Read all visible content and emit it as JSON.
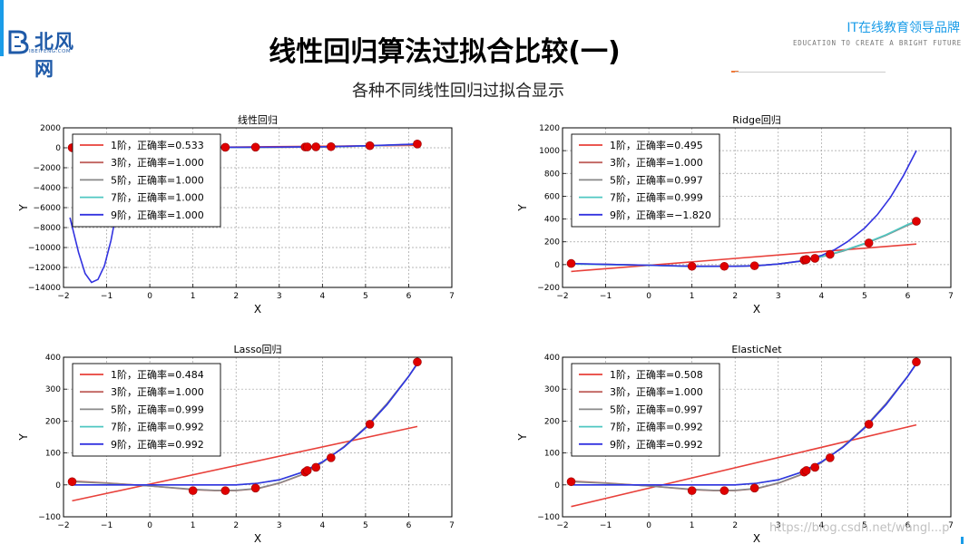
{
  "header": {
    "logo_text": "北风网",
    "logo_url": "IBEIFENG.COM",
    "slogan": "IT在线教育领导品牌",
    "sub_slogan": "EDUCATION TO CREATE A BRIGHT FUTURE"
  },
  "page": {
    "title": "线性回归算法过拟合比较(一)",
    "subtitle": "各种不同线性回归过拟合显示"
  },
  "watermark": "https://blog.csdn.net/wangl...p",
  "colors": {
    "deg1": "#e8403a",
    "deg3": "#c0615d",
    "deg5": "#888888",
    "deg7": "#4fc7c2",
    "deg9": "#3333e0",
    "points": "#e00000",
    "grid": "#a0a0a0",
    "accent": "#1a9ce8"
  },
  "chart_data": [
    {
      "type": "line",
      "title": "线性回归",
      "xlabel": "X",
      "ylabel": "Y",
      "xlim": [
        -2,
        7
      ],
      "ylim": [
        -14000,
        2000
      ],
      "xticks": [
        "−2",
        "−1",
        "0",
        "1",
        "2",
        "3",
        "4",
        "5",
        "6",
        "7"
      ],
      "yticks": [
        "−14000",
        "−12000",
        "−10000",
        "−8000",
        "−6000",
        "−4000",
        "−2000",
        "0",
        "2000"
      ],
      "grid": true,
      "legend_position": "top-left",
      "legend": [
        "1阶，正确率=0.533",
        "3阶，正确率=1.000",
        "5阶，正确率=1.000",
        "7阶，正确率=1.000",
        "9阶，正确率=1.000"
      ],
      "points": {
        "x": [
          -1.8,
          1.0,
          1.75,
          2.45,
          3.6,
          3.65,
          3.85,
          4.2,
          5.1,
          6.2
        ],
        "y": [
          8,
          40,
          50,
          60,
          80,
          85,
          95,
          110,
          210,
          380
        ]
      },
      "series": [
        {
          "key": "deg1",
          "x": [
            -1.8,
            6.2
          ],
          "y": [
            -60,
            250
          ]
        },
        {
          "key": "deg3",
          "x": [
            -1.8,
            -1,
            0,
            1,
            2,
            3,
            4,
            5,
            6,
            6.2
          ],
          "y": [
            -50,
            -30,
            -5,
            15,
            30,
            50,
            80,
            170,
            330,
            380
          ]
        },
        {
          "key": "deg5",
          "x": [
            -1.8,
            -1,
            0,
            1,
            2,
            3,
            4,
            5,
            6,
            6.2
          ],
          "y": [
            -40,
            -20,
            0,
            20,
            40,
            60,
            90,
            180,
            330,
            380
          ]
        },
        {
          "key": "deg7",
          "x": [
            -1.8,
            -1,
            0,
            1,
            2,
            3,
            4,
            5,
            6,
            6.2
          ],
          "y": [
            -40,
            -20,
            0,
            20,
            40,
            60,
            90,
            180,
            330,
            380
          ]
        },
        {
          "key": "deg9",
          "x": [
            -1.85,
            -1.65,
            -1.5,
            -1.35,
            -1.2,
            -1.05,
            -0.9,
            -0.7,
            -0.5,
            -0.45,
            0,
            1,
            2,
            3,
            4,
            5,
            6,
            6.2
          ],
          "y": [
            -7000,
            -10500,
            -12600,
            -13500,
            -13200,
            -11800,
            -9300,
            -4800,
            -1200,
            0,
            0,
            30,
            50,
            70,
            100,
            200,
            350,
            380
          ]
        }
      ]
    },
    {
      "type": "line",
      "title": "Ridge回归",
      "xlabel": "X",
      "ylabel": "Y",
      "xlim": [
        -2,
        7
      ],
      "ylim": [
        -200,
        1200
      ],
      "xticks": [
        "−2",
        "−1",
        "0",
        "1",
        "2",
        "3",
        "4",
        "5",
        "6",
        "7"
      ],
      "yticks": [
        "−200",
        "0",
        "200",
        "400",
        "600",
        "800",
        "1000",
        "1200"
      ],
      "grid": true,
      "legend_position": "top-left",
      "legend": [
        "1阶，正确率=0.495",
        "3阶，正确率=1.000",
        "5阶，正确率=0.997",
        "7阶，正确率=0.999",
        "9阶，正确率=−1.820"
      ],
      "points": {
        "x": [
          -1.8,
          1.0,
          1.75,
          2.45,
          3.6,
          3.65,
          3.85,
          4.2,
          5.1,
          6.2
        ],
        "y": [
          10,
          -15,
          -15,
          -10,
          40,
          45,
          55,
          90,
          190,
          380
        ]
      },
      "series": [
        {
          "key": "deg1",
          "x": [
            -1.8,
            6.2
          ],
          "y": [
            -60,
            180
          ]
        },
        {
          "key": "deg3",
          "x": [
            -1.8,
            -1,
            0,
            1,
            2,
            2.5,
            3,
            3.5,
            4,
            4.5,
            5,
            5.5,
            6,
            6.2
          ],
          "y": [
            8,
            2,
            -5,
            -15,
            -15,
            -10,
            5,
            30,
            70,
            120,
            185,
            260,
            350,
            380
          ]
        },
        {
          "key": "deg5",
          "x": [
            -1.8,
            -1,
            0,
            1,
            2,
            2.5,
            3,
            3.5,
            4,
            4.5,
            5,
            5.5,
            6,
            6.2
          ],
          "y": [
            8,
            2,
            -5,
            -15,
            -15,
            -10,
            5,
            28,
            68,
            118,
            182,
            257,
            345,
            375
          ]
        },
        {
          "key": "deg7",
          "x": [
            -1.8,
            -1,
            0,
            1,
            2,
            2.5,
            3,
            3.5,
            4,
            4.5,
            5,
            5.5,
            6,
            6.2
          ],
          "y": [
            5,
            0,
            -6,
            -16,
            -15,
            -10,
            5,
            30,
            70,
            122,
            186,
            262,
            352,
            382
          ]
        },
        {
          "key": "deg9",
          "x": [
            -1.8,
            -1,
            0,
            1,
            2,
            2.5,
            3,
            3.5,
            4,
            4.3,
            4.6,
            5,
            5.3,
            5.6,
            5.9,
            6.2
          ],
          "y": [
            10,
            2,
            -5,
            -15,
            -15,
            -10,
            5,
            30,
            80,
            130,
            200,
            320,
            440,
            590,
            780,
            1000
          ]
        }
      ]
    },
    {
      "type": "line",
      "title": "Lasso回归",
      "xlabel": "X",
      "ylabel": "Y",
      "xlim": [
        -2,
        7
      ],
      "ylim": [
        -100,
        400
      ],
      "xticks": [
        "−2",
        "−1",
        "0",
        "1",
        "2",
        "3",
        "4",
        "5",
        "6",
        "7"
      ],
      "yticks": [
        "−100",
        "0",
        "100",
        "200",
        "300",
        "400"
      ],
      "grid": true,
      "legend_position": "top-left",
      "legend": [
        "1阶，正确率=0.484",
        "3阶，正确率=1.000",
        "5阶，正确率=0.999",
        "7阶，正确率=0.992",
        "9阶，正确率=0.992"
      ],
      "points": {
        "x": [
          -1.8,
          1.0,
          1.75,
          2.45,
          3.6,
          3.65,
          3.85,
          4.2,
          5.1,
          6.2
        ],
        "y": [
          10,
          -18,
          -18,
          -10,
          40,
          45,
          55,
          85,
          190,
          385
        ]
      },
      "series": [
        {
          "key": "deg1",
          "x": [
            -1.8,
            6.2
          ],
          "y": [
            -50,
            183
          ]
        },
        {
          "key": "deg3",
          "x": [
            -1.8,
            -1,
            0,
            1,
            1.5,
            2,
            2.5,
            3,
            3.5,
            4,
            4.5,
            5,
            5.5,
            6,
            6.2
          ],
          "y": [
            12,
            6,
            -3,
            -15,
            -18,
            -18,
            -12,
            5,
            30,
            70,
            120,
            180,
            255,
            340,
            380
          ]
        },
        {
          "key": "deg5",
          "x": [
            -1.8,
            -1,
            0,
            1,
            1.5,
            2,
            2.5,
            3,
            3.5,
            4,
            4.5,
            5,
            5.5,
            6,
            6.2
          ],
          "y": [
            10,
            5,
            -3,
            -14,
            -17,
            -17,
            -11,
            6,
            31,
            70,
            120,
            180,
            255,
            340,
            380
          ]
        },
        {
          "key": "deg7",
          "x": [
            -1.8,
            -1,
            0,
            1,
            2,
            2.5,
            3,
            3.5,
            4,
            4.5,
            5,
            5.5,
            6,
            6.2
          ],
          "y": [
            0,
            0,
            0,
            0,
            0,
            5,
            16,
            38,
            72,
            118,
            178,
            252,
            340,
            380
          ]
        },
        {
          "key": "deg9",
          "x": [
            -1.8,
            -1,
            0,
            1,
            2,
            2.5,
            3,
            3.5,
            4,
            4.5,
            5,
            5.5,
            6,
            6.2
          ],
          "y": [
            0,
            0,
            0,
            0,
            0,
            5,
            16,
            38,
            72,
            118,
            178,
            252,
            340,
            380
          ]
        }
      ]
    },
    {
      "type": "line",
      "title": "ElasticNet",
      "xlabel": "X",
      "ylabel": "Y",
      "xlim": [
        -2,
        7
      ],
      "ylim": [
        -100,
        400
      ],
      "xticks": [
        "−2",
        "−1",
        "0",
        "1",
        "2",
        "3",
        "4",
        "5",
        "6",
        "7"
      ],
      "yticks": [
        "−100",
        "0",
        "100",
        "200",
        "300",
        "400"
      ],
      "grid": true,
      "legend_position": "top-left",
      "legend": [
        "1阶，正确率=0.508",
        "3阶，正确率=1.000",
        "5阶，正确率=0.997",
        "7阶，正确率=0.992",
        "9阶，正确率=0.992"
      ],
      "points": {
        "x": [
          -1.8,
          1.0,
          1.75,
          2.45,
          3.6,
          3.65,
          3.85,
          4.2,
          5.1,
          6.2
        ],
        "y": [
          10,
          -18,
          -18,
          -10,
          40,
          45,
          55,
          85,
          190,
          385
        ]
      },
      "series": [
        {
          "key": "deg1",
          "x": [
            -1.8,
            6.2
          ],
          "y": [
            -68,
            188
          ]
        },
        {
          "key": "deg3",
          "x": [
            -1.8,
            -1,
            0,
            1,
            1.5,
            2,
            2.5,
            3,
            3.5,
            4,
            4.5,
            5,
            5.5,
            6,
            6.2
          ],
          "y": [
            12,
            6,
            -3,
            -15,
            -18,
            -18,
            -12,
            5,
            30,
            70,
            120,
            180,
            255,
            340,
            380
          ]
        },
        {
          "key": "deg5",
          "x": [
            -1.8,
            -1,
            0,
            1,
            1.5,
            2,
            2.5,
            3,
            3.5,
            4,
            4.5,
            5,
            5.5,
            6,
            6.2
          ],
          "y": [
            10,
            5,
            -3,
            -14,
            -17,
            -17,
            -11,
            6,
            31,
            70,
            120,
            180,
            255,
            340,
            380
          ]
        },
        {
          "key": "deg7",
          "x": [
            -1.8,
            -1,
            0,
            1,
            2,
            2.5,
            3,
            3.5,
            4,
            4.5,
            5,
            5.5,
            6,
            6.2
          ],
          "y": [
            0,
            0,
            0,
            0,
            0,
            5,
            16,
            38,
            72,
            118,
            178,
            252,
            340,
            380
          ]
        },
        {
          "key": "deg9",
          "x": [
            -1.8,
            -1,
            0,
            1,
            2,
            2.5,
            3,
            3.5,
            4,
            4.5,
            5,
            5.5,
            6,
            6.2
          ],
          "y": [
            0,
            0,
            0,
            0,
            0,
            5,
            16,
            38,
            72,
            118,
            178,
            252,
            340,
            380
          ]
        }
      ]
    }
  ]
}
